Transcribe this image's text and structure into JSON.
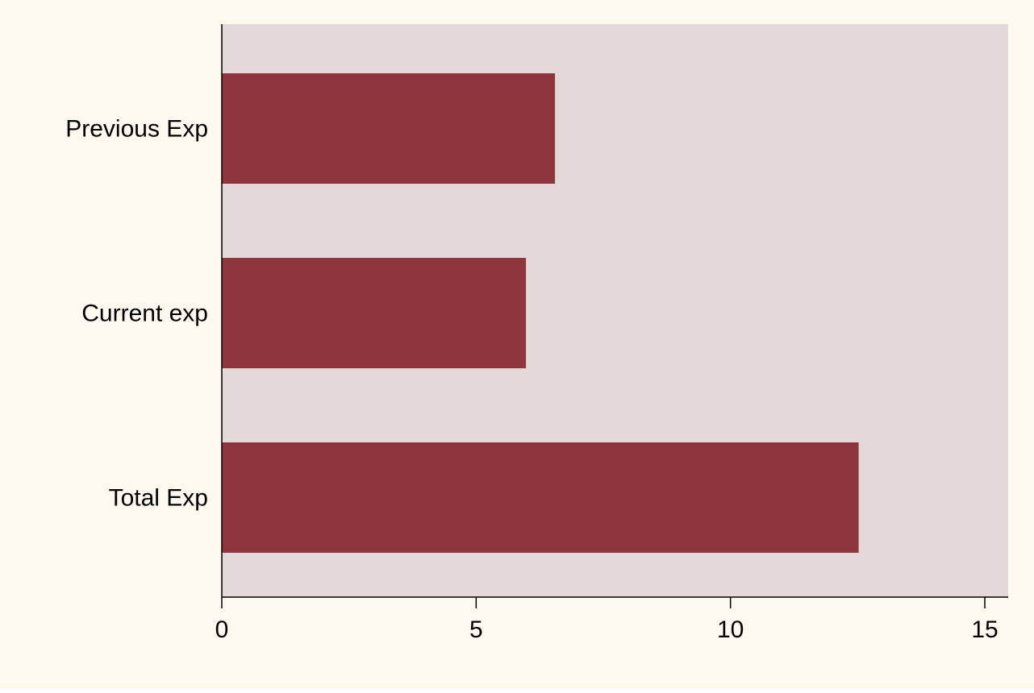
{
  "chart_data": {
    "type": "bar",
    "orientation": "horizontal",
    "categories": [
      "Previous Exp",
      "Current exp",
      "Total Exp"
    ],
    "values": [
      6.55,
      5.98,
      12.52
    ],
    "title": "",
    "xlabel": "",
    "ylabel": "",
    "xlim": [
      0,
      15.5
    ],
    "xticks": [
      0,
      5,
      10,
      15
    ],
    "xtick_labels": [
      "0",
      "5",
      "10",
      "15"
    ],
    "grid": false,
    "legend": "none"
  },
  "colors": {
    "page_background": "#FEF9EF",
    "plot_background": "#E4D9D8",
    "bar": "#8F353D",
    "axis": "#000000"
  }
}
